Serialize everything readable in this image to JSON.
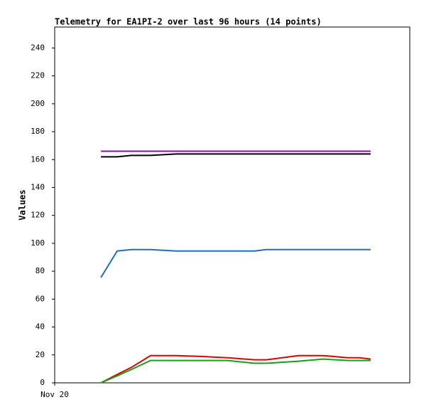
{
  "chart_data": {
    "type": "line",
    "title": "Telemetry for EA1PI-2 over last 96 hours (14 points)",
    "y_label": "Values",
    "xlim": [
      0,
      96
    ],
    "xticks": [
      {
        "value": 0,
        "label": "Nov 20"
      }
    ],
    "ylim": [
      0,
      255
    ],
    "yticks": [
      0,
      20,
      40,
      60,
      80,
      100,
      120,
      140,
      160,
      180,
      200,
      220,
      240
    ],
    "x": [
      12.5,
      16.9,
      20.7,
      25.9,
      32.8,
      39.0,
      46.7,
      54.0,
      57.2,
      65.9,
      72.6,
      79.3,
      82.2,
      85.4
    ],
    "series": [
      {
        "color": "#9900cc",
        "values": [
          166,
          166,
          166,
          166,
          166,
          166,
          166,
          166,
          166,
          166,
          166,
          166,
          166,
          166
        ]
      },
      {
        "color": "#000000",
        "values": [
          162,
          162,
          163,
          163,
          164,
          164,
          164,
          164,
          164,
          164,
          164,
          164,
          164,
          164
        ]
      },
      {
        "color": "#1f6fc0",
        "values": [
          75.5,
          94.5,
          95.5,
          95.5,
          94.5,
          94.5,
          94.5,
          94.5,
          95.5,
          95.5,
          95.5,
          95.5,
          95.5,
          95.5
        ]
      },
      {
        "color": "#e00000",
        "values": [
          0,
          6,
          11,
          19.5,
          19.5,
          19,
          18,
          16.5,
          16.5,
          19.5,
          19.5,
          18,
          18,
          17
        ]
      },
      {
        "color": "#16a016",
        "values": [
          0,
          5,
          9.5,
          16,
          16,
          16,
          16,
          14,
          14,
          15.5,
          17,
          16,
          16,
          16
        ]
      }
    ]
  }
}
